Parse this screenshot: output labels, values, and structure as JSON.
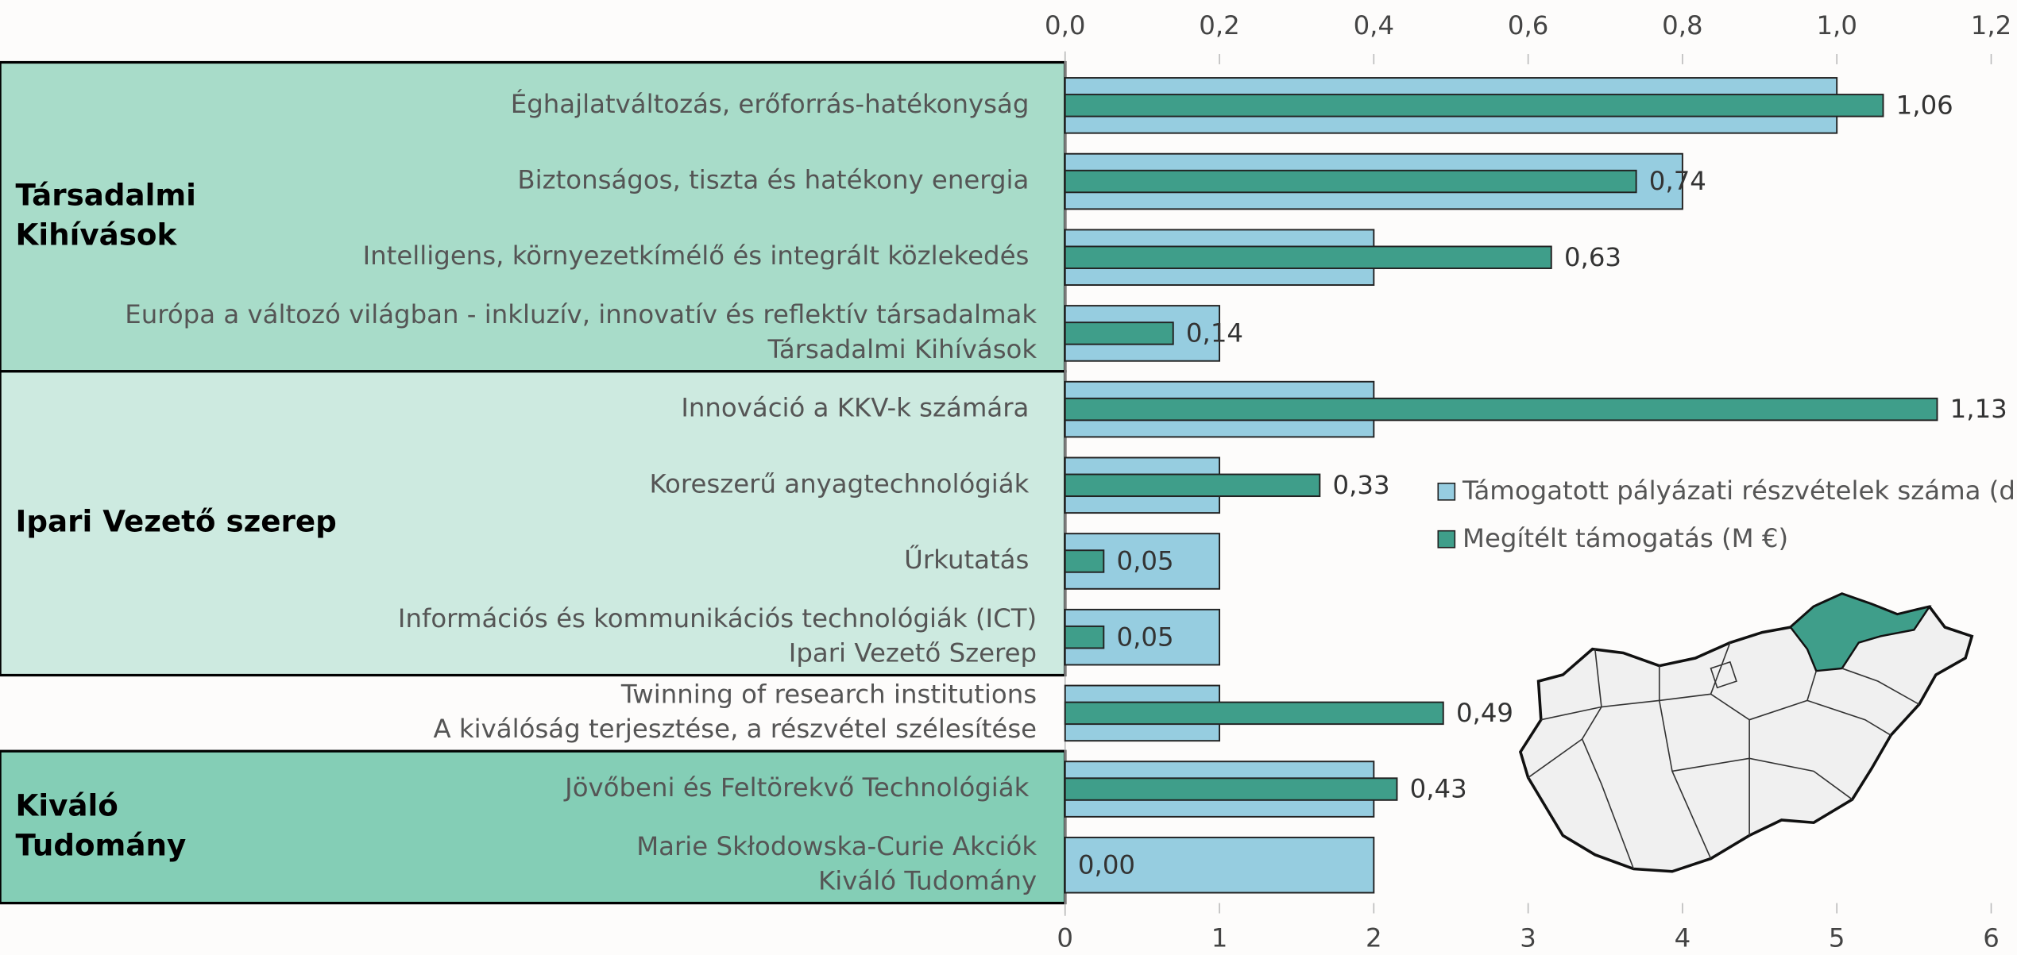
{
  "chart_data": {
    "type": "bar",
    "orientation": "horizontal",
    "categories": [
      [
        "Éghajlatváltozás, erőforrás-hatékonyság"
      ],
      [
        "Biztonságos, tiszta és hatékony energia"
      ],
      [
        "Intelligens, környezetkímélő és integrált közlekedés"
      ],
      [
        "Európa a változó világban - inkluzív, innovatív és reflektív társadalmak",
        "Társadalmi Kihívások"
      ],
      [
        "Innováció a KKV-k számára"
      ],
      [
        "Koreszerű anyagtechnológiák"
      ],
      [
        "Űrkutatás"
      ],
      [
        "Információs és kommunikációs technológiák (ICT)",
        "Ipari Vezető Szerep"
      ],
      [
        "Twinning of research institutions",
        "A kiválóság terjesztése, a részvétel szélesítése"
      ],
      [
        "Jövőbeni és Feltörekvő Technológiák"
      ],
      [
        "Marie Skłodowska-Curie Akciók",
        "Kiváló Tudomány"
      ]
    ],
    "groups": [
      {
        "label": [
          "Társadalmi",
          "Kihívások"
        ],
        "rows": [
          0,
          3
        ],
        "color": "#a8dcc9"
      },
      {
        "label": [
          "Ipari Vezető szerep"
        ],
        "rows": [
          4,
          7
        ],
        "color": "#cdeae0"
      },
      {
        "label": [
          "Kiváló",
          "Tudomány"
        ],
        "rows": [
          9,
          10
        ],
        "color": "#84ceb6"
      }
    ],
    "series": [
      {
        "name": "Támogatott pályázati részvételek száma (db)",
        "color": "#96cde0",
        "axis": "x",
        "values": [
          5,
          4,
          2,
          1,
          2,
          1,
          1,
          1,
          1,
          2,
          2
        ]
      },
      {
        "name": "Megítélt támogatás (M €)",
        "color": "#3f9e8a",
        "axis": "x2",
        "values": [
          1.06,
          0.74,
          0.63,
          0.14,
          1.13,
          0.33,
          0.05,
          0.05,
          0.49,
          0.43,
          0.0
        ],
        "value_labels": [
          "1,06",
          "0,74",
          "0,63",
          "0,14",
          "1,13",
          "0,33",
          "0,05",
          "0,05",
          "0,49",
          "0,43",
          "0,00"
        ]
      }
    ],
    "xlim": [
      0,
      6
    ],
    "xticks": [
      0,
      1,
      2,
      3,
      4,
      5,
      6
    ],
    "x2lim": [
      0,
      1.2
    ],
    "x2ticks": [
      {
        "value": 0,
        "label": "0,0"
      },
      {
        "value": 0.2,
        "label": "0,2"
      },
      {
        "value": 0.4,
        "label": "0,4"
      },
      {
        "value": 0.6,
        "label": "0,6"
      },
      {
        "value": 0.8,
        "label": "0,8"
      },
      {
        "value": 1.0,
        "label": "1,0"
      },
      {
        "value": 1.2,
        "label": "1,2"
      }
    ]
  }
}
